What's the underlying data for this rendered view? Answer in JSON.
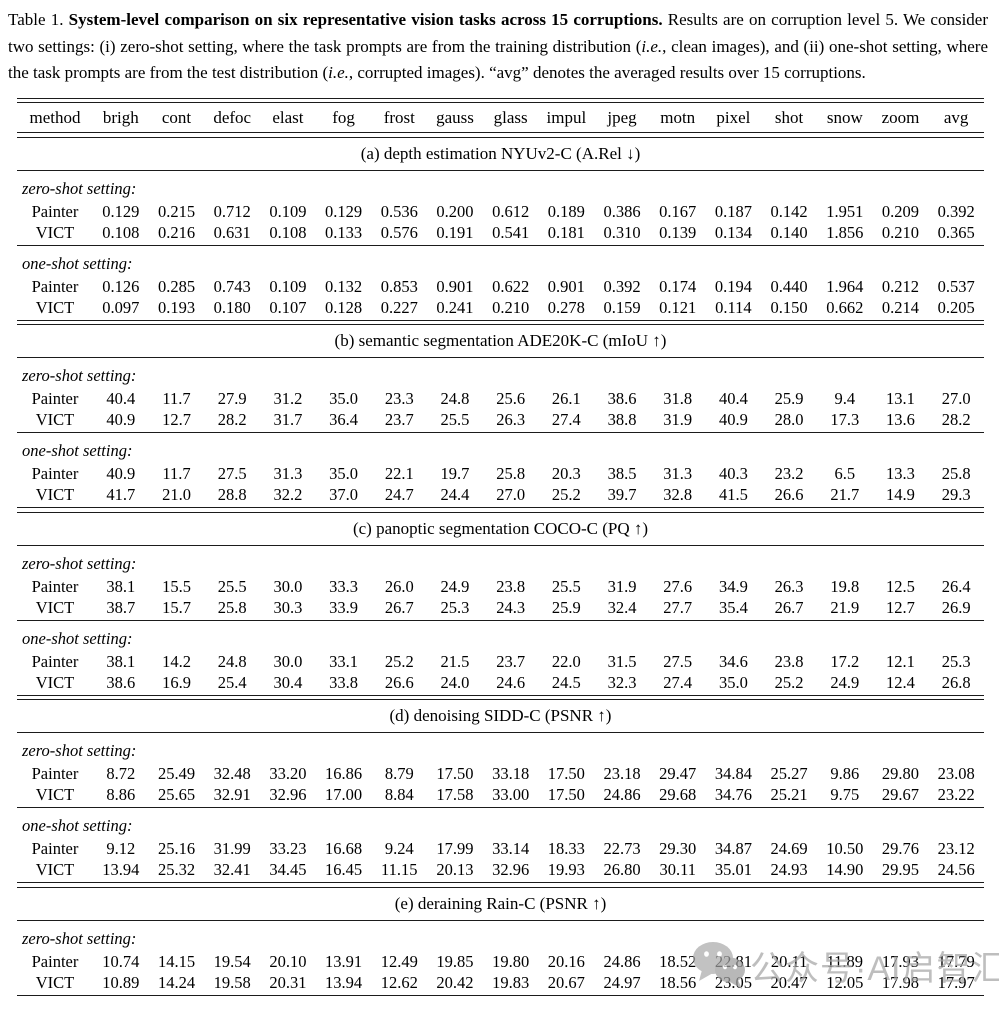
{
  "caption": {
    "segments": [
      {
        "text": "Table 1. ",
        "style": "normal"
      },
      {
        "text": "System-level comparison on six representative vision tasks across 15 corruptions.",
        "style": "bold"
      },
      {
        "text": " Results are on corruption level 5.  We consider two settings: (i) zero-shot setting, where the task prompts are from the training distribution (",
        "style": "normal"
      },
      {
        "text": "i.e.",
        "style": "italic"
      },
      {
        "text": ", clean images), and (ii) one-shot setting, where the task prompts are from the test distribution (",
        "style": "normal"
      },
      {
        "text": "i.e.",
        "style": "italic"
      },
      {
        "text": ", corrupted images).  “avg” denotes the averaged results over 15 corruptions.",
        "style": "normal"
      }
    ]
  },
  "table": {
    "columns": [
      "method",
      "brigh",
      "cont",
      "defoc",
      "elast",
      "fog",
      "frost",
      "gauss",
      "glass",
      "impul",
      "jpeg",
      "motn",
      "pixel",
      "shot",
      "snow",
      "zoom",
      "avg"
    ],
    "sections": [
      {
        "title": "(a) depth estimation NYUv2-C (A.Rel ↓)",
        "groups": [
          {
            "label": "zero-shot setting:",
            "rows": [
              {
                "method": "Painter",
                "values": [
                  "0.129",
                  "0.215",
                  "0.712",
                  "0.109",
                  "0.129",
                  "0.536",
                  "0.200",
                  "0.612",
                  "0.189",
                  "0.386",
                  "0.167",
                  "0.187",
                  "0.142",
                  "1.951",
                  "0.209",
                  "0.392"
                ]
              },
              {
                "method": "VICT",
                "values": [
                  "0.108",
                  "0.216",
                  "0.631",
                  "0.108",
                  "0.133",
                  "0.576",
                  "0.191",
                  "0.541",
                  "0.181",
                  "0.310",
                  "0.139",
                  "0.134",
                  "0.140",
                  "1.856",
                  "0.210",
                  "0.365"
                ]
              }
            ]
          },
          {
            "label": "one-shot setting:",
            "rows": [
              {
                "method": "Painter",
                "values": [
                  "0.126",
                  "0.285",
                  "0.743",
                  "0.109",
                  "0.132",
                  "0.853",
                  "0.901",
                  "0.622",
                  "0.901",
                  "0.392",
                  "0.174",
                  "0.194",
                  "0.440",
                  "1.964",
                  "0.212",
                  "0.537"
                ]
              },
              {
                "method": "VICT",
                "values": [
                  "0.097",
                  "0.193",
                  "0.180",
                  "0.107",
                  "0.128",
                  "0.227",
                  "0.241",
                  "0.210",
                  "0.278",
                  "0.159",
                  "0.121",
                  "0.114",
                  "0.150",
                  "0.662",
                  "0.214",
                  "0.205"
                ]
              }
            ]
          }
        ]
      },
      {
        "title": "(b) semantic segmentation ADE20K-C (mIoU ↑)",
        "groups": [
          {
            "label": "zero-shot setting:",
            "rows": [
              {
                "method": "Painter",
                "values": [
                  "40.4",
                  "11.7",
                  "27.9",
                  "31.2",
                  "35.0",
                  "23.3",
                  "24.8",
                  "25.6",
                  "26.1",
                  "38.6",
                  "31.8",
                  "40.4",
                  "25.9",
                  "9.4",
                  "13.1",
                  "27.0"
                ]
              },
              {
                "method": "VICT",
                "values": [
                  "40.9",
                  "12.7",
                  "28.2",
                  "31.7",
                  "36.4",
                  "23.7",
                  "25.5",
                  "26.3",
                  "27.4",
                  "38.8",
                  "31.9",
                  "40.9",
                  "28.0",
                  "17.3",
                  "13.6",
                  "28.2"
                ]
              }
            ]
          },
          {
            "label": "one-shot setting:",
            "rows": [
              {
                "method": "Painter",
                "values": [
                  "40.9",
                  "11.7",
                  "27.5",
                  "31.3",
                  "35.0",
                  "22.1",
                  "19.7",
                  "25.8",
                  "20.3",
                  "38.5",
                  "31.3",
                  "40.3",
                  "23.2",
                  "6.5",
                  "13.3",
                  "25.8"
                ]
              },
              {
                "method": "VICT",
                "values": [
                  "41.7",
                  "21.0",
                  "28.8",
                  "32.2",
                  "37.0",
                  "24.7",
                  "24.4",
                  "27.0",
                  "25.2",
                  "39.7",
                  "32.8",
                  "41.5",
                  "26.6",
                  "21.7",
                  "14.9",
                  "29.3"
                ]
              }
            ]
          }
        ]
      },
      {
        "title": "(c) panoptic segmentation COCO-C (PQ ↑)",
        "groups": [
          {
            "label": "zero-shot setting:",
            "rows": [
              {
                "method": "Painter",
                "values": [
                  "38.1",
                  "15.5",
                  "25.5",
                  "30.0",
                  "33.3",
                  "26.0",
                  "24.9",
                  "23.8",
                  "25.5",
                  "31.9",
                  "27.6",
                  "34.9",
                  "26.3",
                  "19.8",
                  "12.5",
                  "26.4"
                ]
              },
              {
                "method": "VICT",
                "values": [
                  "38.7",
                  "15.7",
                  "25.8",
                  "30.3",
                  "33.9",
                  "26.7",
                  "25.3",
                  "24.3",
                  "25.9",
                  "32.4",
                  "27.7",
                  "35.4",
                  "26.7",
                  "21.9",
                  "12.7",
                  "26.9"
                ]
              }
            ]
          },
          {
            "label": "one-shot setting:",
            "rows": [
              {
                "method": "Painter",
                "values": [
                  "38.1",
                  "14.2",
                  "24.8",
                  "30.0",
                  "33.1",
                  "25.2",
                  "21.5",
                  "23.7",
                  "22.0",
                  "31.5",
                  "27.5",
                  "34.6",
                  "23.8",
                  "17.2",
                  "12.1",
                  "25.3"
                ]
              },
              {
                "method": "VICT",
                "values": [
                  "38.6",
                  "16.9",
                  "25.4",
                  "30.4",
                  "33.8",
                  "26.6",
                  "24.0",
                  "24.6",
                  "24.5",
                  "32.3",
                  "27.4",
                  "35.0",
                  "25.2",
                  "24.9",
                  "12.4",
                  "26.8"
                ]
              }
            ]
          }
        ]
      },
      {
        "title": "(d) denoising SIDD-C (PSNR ↑)",
        "groups": [
          {
            "label": "zero-shot setting:",
            "rows": [
              {
                "method": "Painter",
                "values": [
                  "8.72",
                  "25.49",
                  "32.48",
                  "33.20",
                  "16.86",
                  "8.79",
                  "17.50",
                  "33.18",
                  "17.50",
                  "23.18",
                  "29.47",
                  "34.84",
                  "25.27",
                  "9.86",
                  "29.80",
                  "23.08"
                ]
              },
              {
                "method": "VICT",
                "values": [
                  "8.86",
                  "25.65",
                  "32.91",
                  "32.96",
                  "17.00",
                  "8.84",
                  "17.58",
                  "33.00",
                  "17.50",
                  "24.86",
                  "29.68",
                  "34.76",
                  "25.21",
                  "9.75",
                  "29.67",
                  "23.22"
                ]
              }
            ]
          },
          {
            "label": "one-shot setting:",
            "rows": [
              {
                "method": "Painter",
                "values": [
                  "9.12",
                  "25.16",
                  "31.99",
                  "33.23",
                  "16.68",
                  "9.24",
                  "17.99",
                  "33.14",
                  "18.33",
                  "22.73",
                  "29.30",
                  "34.87",
                  "24.69",
                  "10.50",
                  "29.76",
                  "23.12"
                ]
              },
              {
                "method": "VICT",
                "values": [
                  "13.94",
                  "25.32",
                  "32.41",
                  "34.45",
                  "16.45",
                  "11.15",
                  "20.13",
                  "32.96",
                  "19.93",
                  "26.80",
                  "30.11",
                  "35.01",
                  "24.93",
                  "14.90",
                  "29.95",
                  "24.56"
                ]
              }
            ]
          }
        ]
      },
      {
        "title": "(e) deraining Rain-C (PSNR ↑)",
        "groups": [
          {
            "label": "zero-shot setting:",
            "rows": [
              {
                "method": "Painter",
                "values": [
                  "10.74",
                  "14.15",
                  "19.54",
                  "20.10",
                  "13.91",
                  "12.49",
                  "19.85",
                  "19.80",
                  "20.16",
                  "24.86",
                  "18.52",
                  "22.81",
                  "20.11",
                  "11.89",
                  "17.93",
                  "17.79"
                ]
              },
              {
                "method": "VICT",
                "values": [
                  "10.89",
                  "14.24",
                  "19.58",
                  "20.31",
                  "13.94",
                  "12.62",
                  "20.42",
                  "19.83",
                  "20.67",
                  "24.97",
                  "18.56",
                  "23.05",
                  "20.47",
                  "12.05",
                  "17.98",
                  "17.97"
                ]
              }
            ]
          }
        ]
      }
    ]
  },
  "watermark": {
    "text": "公众号·AI启智汇",
    "color": "#a6a6a6"
  }
}
